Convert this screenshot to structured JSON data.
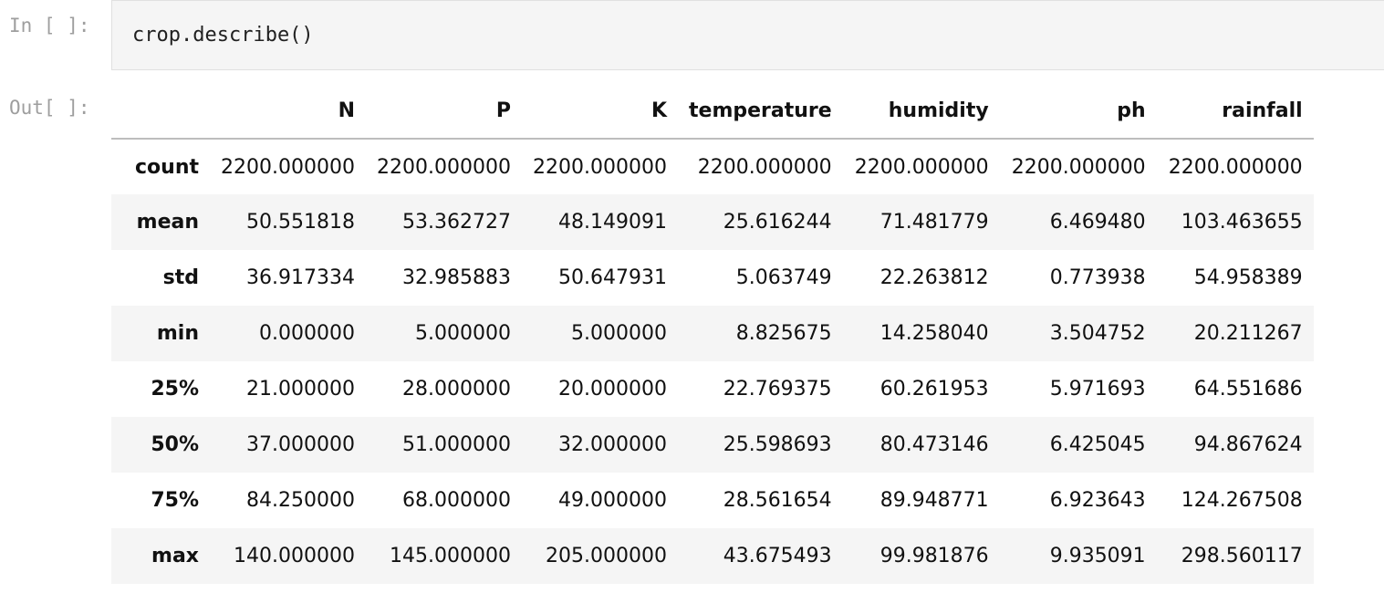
{
  "input_cell": {
    "prompt": "In [ ]:",
    "code": "crop.describe()"
  },
  "output_cell": {
    "prompt": "Out[ ]:"
  },
  "table": {
    "columns": [
      "N",
      "P",
      "K",
      "temperature",
      "humidity",
      "ph",
      "rainfall"
    ],
    "rows": [
      {
        "label": "count",
        "values": [
          "2200.000000",
          "2200.000000",
          "2200.000000",
          "2200.000000",
          "2200.000000",
          "2200.000000",
          "2200.000000"
        ]
      },
      {
        "label": "mean",
        "values": [
          "50.551818",
          "53.362727",
          "48.149091",
          "25.616244",
          "71.481779",
          "6.469480",
          "103.463655"
        ]
      },
      {
        "label": "std",
        "values": [
          "36.917334",
          "32.985883",
          "50.647931",
          "5.063749",
          "22.263812",
          "0.773938",
          "54.958389"
        ]
      },
      {
        "label": "min",
        "values": [
          "0.000000",
          "5.000000",
          "5.000000",
          "8.825675",
          "14.258040",
          "3.504752",
          "20.211267"
        ]
      },
      {
        "label": "25%",
        "values": [
          "21.000000",
          "28.000000",
          "20.000000",
          "22.769375",
          "60.261953",
          "5.971693",
          "64.551686"
        ]
      },
      {
        "label": "50%",
        "values": [
          "37.000000",
          "51.000000",
          "32.000000",
          "25.598693",
          "80.473146",
          "6.425045",
          "94.867624"
        ]
      },
      {
        "label": "75%",
        "values": [
          "84.250000",
          "68.000000",
          "49.000000",
          "28.561654",
          "89.948771",
          "6.923643",
          "124.267508"
        ]
      },
      {
        "label": "max",
        "values": [
          "140.000000",
          "145.000000",
          "205.000000",
          "43.675493",
          "99.981876",
          "9.935091",
          "298.560117"
        ]
      }
    ]
  }
}
